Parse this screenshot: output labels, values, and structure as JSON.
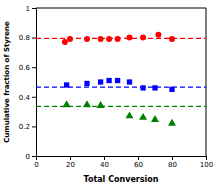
{
  "chart_data": {
    "type": "scatter",
    "xlabel": "Total Conversion",
    "ylabel": "Cumulative fraction of Styrene",
    "xlim": [
      0,
      100
    ],
    "ylim": [
      0,
      1
    ],
    "xticks": [
      0,
      20,
      40,
      60,
      80,
      100
    ],
    "yticks": [
      0,
      0.2,
      0.4,
      0.6,
      0.8,
      1
    ],
    "series": [
      {
        "type": "hline",
        "color": "red",
        "line_style": "dashed",
        "values": [
          0.795
        ]
      },
      {
        "type": "hline",
        "color": "blue",
        "line_style": "dashed",
        "values": [
          0.465
        ]
      },
      {
        "type": "hline",
        "color": "green",
        "line_style": "dashed",
        "values": [
          0.335
        ]
      },
      {
        "type": "scatter",
        "color": "red",
        "marker": "circle",
        "x": [
          17,
          20,
          30,
          38,
          43,
          48,
          55,
          63,
          72,
          80
        ],
        "values": [
          0.77,
          0.79,
          0.79,
          0.79,
          0.79,
          0.79,
          0.8,
          0.8,
          0.82,
          0.79
        ]
      },
      {
        "type": "scatter",
        "color": "blue",
        "marker": "square",
        "x": [
          18,
          30,
          38,
          43,
          48,
          55,
          63,
          70,
          80
        ],
        "values": [
          0.48,
          0.49,
          0.5,
          0.51,
          0.51,
          0.5,
          0.46,
          0.46,
          0.45
        ]
      },
      {
        "type": "scatter",
        "color": "green",
        "marker": "triangle",
        "x": [
          18,
          30,
          38,
          55,
          63,
          70,
          80
        ],
        "values": [
          0.345,
          0.345,
          0.34,
          0.27,
          0.26,
          0.245,
          0.22
        ]
      }
    ]
  }
}
